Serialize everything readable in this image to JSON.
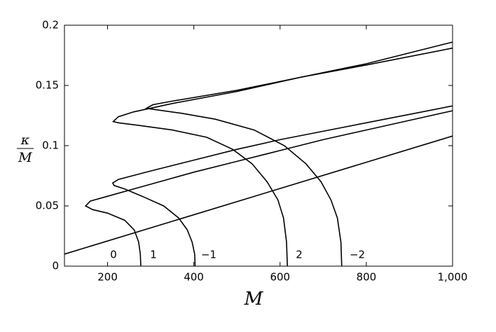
{
  "chart_data": {
    "type": "line",
    "x_label": "M",
    "y_label_numerator": "κ",
    "y_label_denominator": "M",
    "xlim": [
      100,
      1000
    ],
    "xticks": [
      200,
      400,
      600,
      800,
      {
        "value": 1000,
        "label": "1,000"
      }
    ],
    "ylim": [
      0,
      0.2
    ],
    "yticks": [
      0,
      0.05,
      0.1,
      0.15,
      0.2
    ],
    "grid": false,
    "series": [
      {
        "name": "0",
        "color": "#000000",
        "x": [
          100,
          1000
        ],
        "values": [
          0.01,
          0.108
        ]
      },
      {
        "name": "1",
        "color": "#000000",
        "x": [
          277,
          276,
          272,
          262,
          240,
          200,
          165,
          149,
          160,
          200,
          300,
          400,
          500,
          600,
          700,
          800,
          900,
          1000
        ],
        "values": [
          0,
          0.01,
          0.02,
          0.03,
          0.038,
          0.044,
          0.047,
          0.05,
          0.054,
          0.058,
          0.068,
          0.078,
          0.087,
          0.096,
          0.105,
          0.113,
          0.121,
          0.129
        ]
      },
      {
        "name": "−1",
        "color": "#000000",
        "x": [
          403,
          402,
          396,
          385,
          365,
          330,
          280,
          240,
          215,
          212,
          225,
          300,
          400,
          500,
          600,
          700,
          800,
          900,
          1000
        ],
        "values": [
          0,
          0.01,
          0.02,
          0.03,
          0.04,
          0.05,
          0.058,
          0.064,
          0.067,
          0.069,
          0.072,
          0.079,
          0.088,
          0.097,
          0.105,
          0.112,
          0.119,
          0.126,
          0.133
        ]
      },
      {
        "name": "2",
        "color": "#000000",
        "x": [
          617,
          615,
          608,
          595,
          570,
          535,
          490,
          430,
          350,
          270,
          225,
          213,
          225,
          260,
          350,
          500,
          650,
          800,
          1000
        ],
        "values": [
          0,
          0.02,
          0.04,
          0.055,
          0.07,
          0.085,
          0.097,
          0.107,
          0.113,
          0.117,
          0.119,
          0.12,
          0.124,
          0.128,
          0.135,
          0.145,
          0.157,
          0.168,
          0.186
        ]
      },
      {
        "name": "−2",
        "color": "#000000",
        "x": [
          743,
          741,
          733,
          718,
          695,
          660,
          610,
          540,
          450,
          370,
          310,
          290,
          305,
          350,
          500,
          650,
          800,
          1000
        ],
        "values": [
          0,
          0.02,
          0.04,
          0.055,
          0.07,
          0.085,
          0.1,
          0.113,
          0.122,
          0.127,
          0.13,
          0.131,
          0.134,
          0.137,
          0.146,
          0.157,
          0.167,
          0.181
        ]
      }
    ]
  }
}
